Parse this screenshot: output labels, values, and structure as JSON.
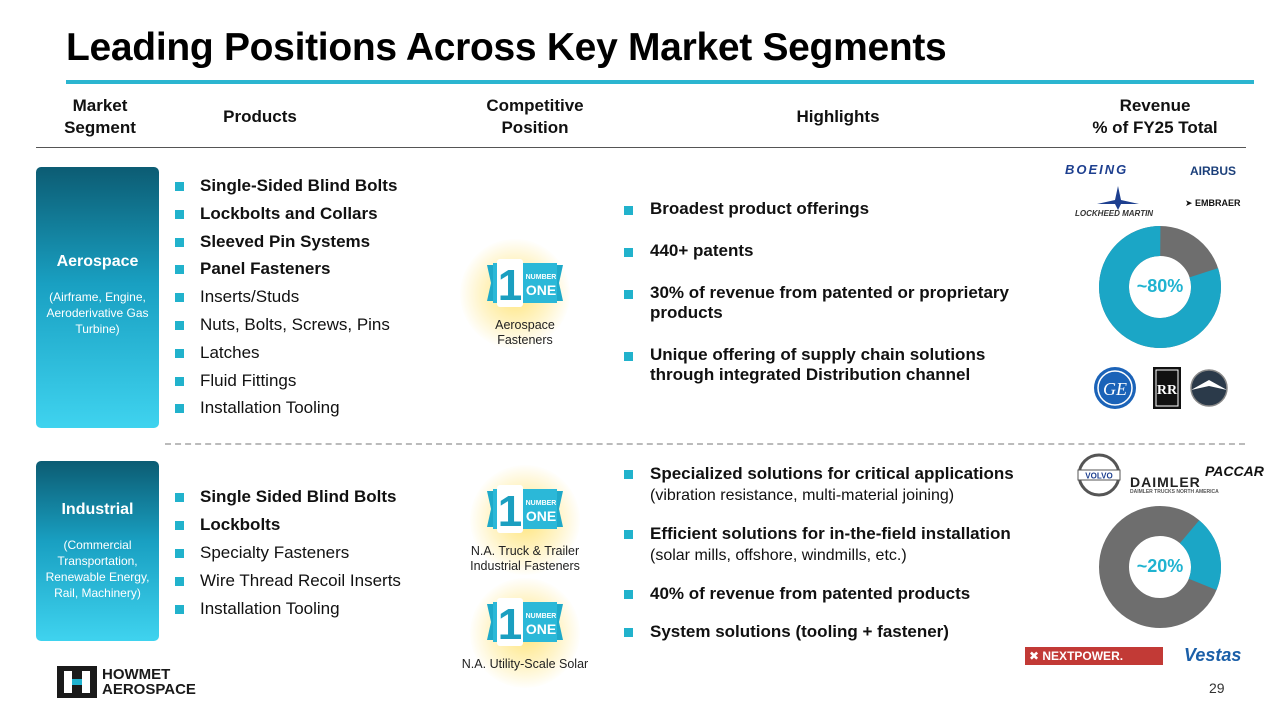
{
  "title": "Leading Positions Across Key Market Segments",
  "headers": {
    "segment": [
      "Market",
      "Segment"
    ],
    "products": "Products",
    "position": [
      "Competitive",
      "Position"
    ],
    "highlights": "Highlights",
    "revenue": [
      "Revenue",
      "% of FY25 Total"
    ]
  },
  "aerospace": {
    "name": "Aerospace",
    "desc": "(Airframe, Engine, Aeroderivative Gas Turbine)",
    "products": [
      {
        "label": "Single-Sided Blind Bolts",
        "bold": true
      },
      {
        "label": "Lockbolts and Collars",
        "bold": true
      },
      {
        "label": "Sleeved Pin Systems",
        "bold": true
      },
      {
        "label": "Panel Fasteners",
        "bold": true
      },
      {
        "label": "Inserts/Studs",
        "bold": false
      },
      {
        "label": "Nuts, Bolts, Screws, Pins",
        "bold": false
      },
      {
        "label": "Latches",
        "bold": false
      },
      {
        "label": "Fluid Fittings",
        "bold": false
      },
      {
        "label": "Installation Tooling",
        "bold": false
      }
    ],
    "badges": [
      {
        "word": "NUMBER ONE",
        "caption": [
          "Aerospace",
          "Fasteners"
        ]
      }
    ],
    "highlights": [
      {
        "bold": "Broadest product offerings",
        "normal": ""
      },
      {
        "bold": "440+ patents",
        "normal": ""
      },
      {
        "bold": "30% of revenue from patented or proprietary products",
        "normal": ""
      },
      {
        "bold": "Unique offering of supply chain solutions through integrated Distribution channel",
        "normal": ""
      }
    ],
    "revenue_label": "~80%",
    "revenue_share": 0.8,
    "logos_top": [
      "BOEING",
      "AIRBUS",
      "LOCKHEED MARTIN",
      "EMBRAER"
    ],
    "logos_bottom": [
      "GE",
      "ROLLS ROYCE",
      "PRATT & WHITNEY"
    ]
  },
  "industrial": {
    "name": "Industrial",
    "desc": "(Commercial Transportation, Renewable Energy, Rail, Machinery)",
    "products": [
      {
        "label": "Single Sided Blind Bolts",
        "bold": true
      },
      {
        "label": "Lockbolts",
        "bold": true
      },
      {
        "label": "Specialty Fasteners",
        "bold": false
      },
      {
        "label": "Wire Thread Recoil Inserts",
        "bold": false
      },
      {
        "label": "Installation Tooling",
        "bold": false
      }
    ],
    "badges": [
      {
        "word": "NUMBER ONE",
        "caption": [
          "N.A. Truck & Trailer",
          "Industrial Fasteners"
        ]
      },
      {
        "word": "NUMBER ONE",
        "caption": [
          "N.A. Utility-Scale Solar"
        ]
      }
    ],
    "highlights": [
      {
        "bold": "Specialized solutions for critical applications",
        "normal": "(vibration resistance, multi-material joining)"
      },
      {
        "bold": "Efficient solutions for in-the-field installation",
        "normal": "(solar mills, offshore, windmills, etc.)"
      },
      {
        "bold": "40% of revenue from patented products",
        "normal": ""
      },
      {
        "bold": "System solutions (tooling + fastener)",
        "normal": ""
      }
    ],
    "revenue_label": "~20%",
    "revenue_share": 0.2,
    "logos_top": [
      "VOLVO",
      "DAIMLER",
      "DAIMLER TRUCKS NORTH AMERICA",
      "PACCAR"
    ],
    "logos_bottom": [
      "NEXTPOWER.",
      "Vestas"
    ]
  },
  "colors": {
    "accent": "#21b2cc",
    "donut_main": "#1ba6c6",
    "donut_rest": "#6e6e6e",
    "label_cyan": "#1fb3d0"
  },
  "footer": {
    "company_line1": "HOWMET",
    "company_line2": "AEROSPACE",
    "page": "29"
  }
}
